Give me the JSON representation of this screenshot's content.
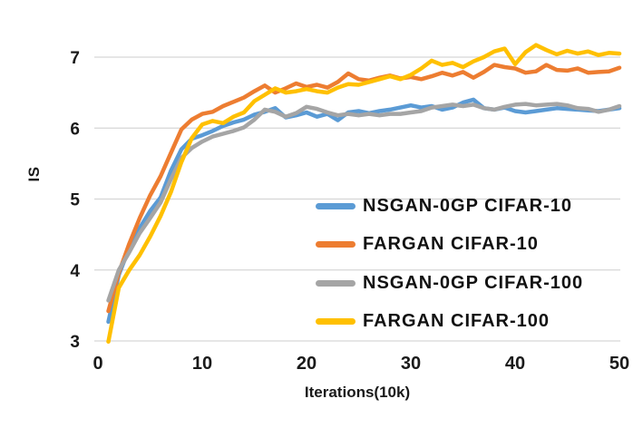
{
  "chart_data": {
    "type": "line",
    "title": "",
    "xlabel": "Iterations(10k)",
    "ylabel": "IS",
    "xlim": [
      0,
      50
    ],
    "ylim": [
      3,
      7.25
    ],
    "x_ticks": [
      0,
      10,
      20,
      30,
      40,
      50
    ],
    "y_ticks": [
      3,
      4,
      5,
      6,
      7
    ],
    "grid": true,
    "legend_position": "inside-right",
    "styles": {
      "gridline_color": "#D6D6D6",
      "label_color": "#1A1A1A",
      "background": "#FFFFFF",
      "line_width": 4.5
    },
    "x": [
      1,
      2,
      3,
      4,
      5,
      6,
      7,
      8,
      9,
      10,
      11,
      12,
      13,
      14,
      15,
      16,
      17,
      18,
      19,
      20,
      21,
      22,
      23,
      24,
      25,
      26,
      27,
      28,
      29,
      30,
      31,
      32,
      33,
      34,
      35,
      36,
      37,
      38,
      39,
      40,
      41,
      42,
      43,
      44,
      45,
      46,
      47,
      48,
      49,
      50
    ],
    "series": [
      {
        "name": "NSGAN-0GP CIFAR-10",
        "color": "#5B9BD5",
        "values": [
          3.27,
          3.93,
          4.31,
          4.59,
          4.83,
          5.02,
          5.4,
          5.7,
          5.85,
          5.9,
          5.96,
          6.03,
          6.08,
          6.12,
          6.19,
          6.23,
          6.28,
          6.15,
          6.18,
          6.22,
          6.16,
          6.2,
          6.11,
          6.22,
          6.24,
          6.21,
          6.24,
          6.26,
          6.29,
          6.32,
          6.29,
          6.31,
          6.26,
          6.29,
          6.36,
          6.4,
          6.28,
          6.26,
          6.29,
          6.24,
          6.22,
          6.24,
          6.26,
          6.28,
          6.27,
          6.26,
          6.25,
          6.24,
          6.26,
          6.28
        ]
      },
      {
        "name": "FARGAN CIFAR-10",
        "color": "#ED7D31",
        "values": [
          3.42,
          3.96,
          4.37,
          4.73,
          5.05,
          5.32,
          5.65,
          5.98,
          6.12,
          6.2,
          6.23,
          6.31,
          6.37,
          6.43,
          6.52,
          6.6,
          6.5,
          6.56,
          6.63,
          6.58,
          6.61,
          6.57,
          6.65,
          6.77,
          6.69,
          6.67,
          6.71,
          6.74,
          6.7,
          6.72,
          6.69,
          6.73,
          6.78,
          6.74,
          6.79,
          6.71,
          6.79,
          6.89,
          6.86,
          6.84,
          6.78,
          6.8,
          6.89,
          6.82,
          6.81,
          6.84,
          6.78,
          6.79,
          6.8,
          6.85
        ]
      },
      {
        "name": "NSGAN-0GP CIFAR-100",
        "color": "#A5A5A5",
        "values": [
          3.57,
          4.0,
          4.25,
          4.52,
          4.73,
          4.95,
          5.28,
          5.58,
          5.72,
          5.81,
          5.88,
          5.92,
          5.96,
          6.01,
          6.12,
          6.26,
          6.23,
          6.16,
          6.21,
          6.3,
          6.27,
          6.22,
          6.18,
          6.2,
          6.18,
          6.2,
          6.18,
          6.2,
          6.2,
          6.22,
          6.24,
          6.29,
          6.31,
          6.33,
          6.31,
          6.33,
          6.28,
          6.26,
          6.3,
          6.33,
          6.34,
          6.32,
          6.33,
          6.34,
          6.32,
          6.28,
          6.27,
          6.23,
          6.26,
          6.31
        ]
      },
      {
        "name": "FARGAN CIFAR-100",
        "color": "#FFC000",
        "values": [
          2.99,
          3.75,
          4.0,
          4.21,
          4.47,
          4.76,
          5.1,
          5.52,
          5.86,
          6.05,
          6.1,
          6.07,
          6.16,
          6.22,
          6.38,
          6.47,
          6.56,
          6.5,
          6.52,
          6.55,
          6.52,
          6.5,
          6.57,
          6.62,
          6.61,
          6.65,
          6.69,
          6.73,
          6.69,
          6.75,
          6.84,
          6.95,
          6.89,
          6.92,
          6.86,
          6.94,
          7.0,
          7.08,
          7.12,
          6.9,
          7.07,
          7.17,
          7.1,
          7.04,
          7.09,
          7.05,
          7.08,
          7.03,
          7.06,
          7.05
        ]
      }
    ]
  }
}
